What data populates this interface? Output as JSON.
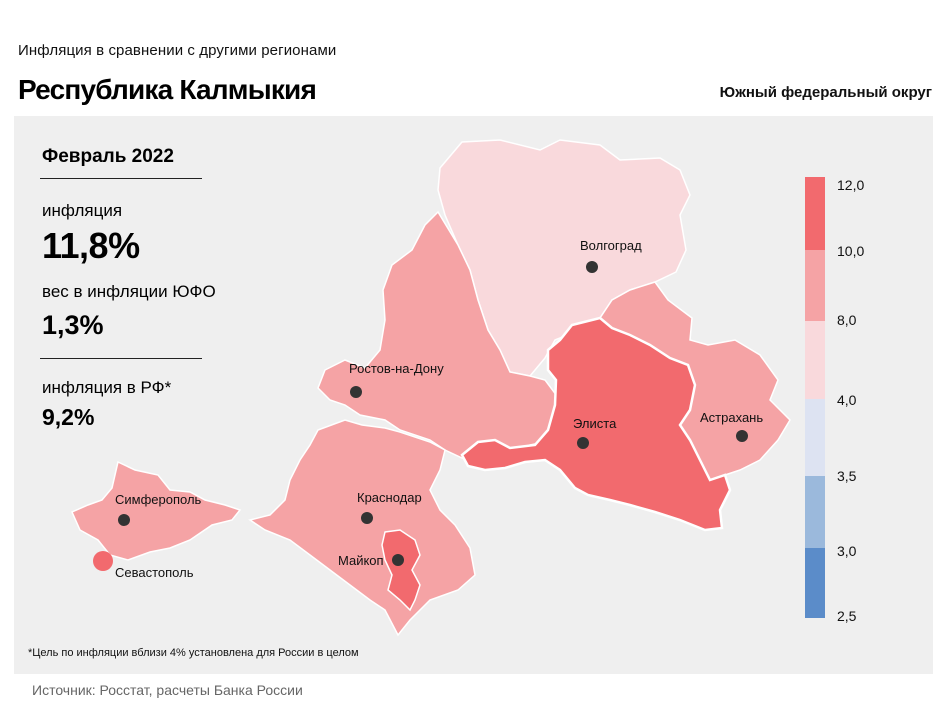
{
  "header": {
    "subtitle": "Инфляция  в сравнении  с другими  регионами",
    "title": "Республика Калмыкия",
    "district": "Южный федеральный округ"
  },
  "info": {
    "period": "Февраль 2022",
    "inflation_label": "инфляция",
    "inflation_value": "11,8%",
    "weight_label": "вес в инфляции  ЮФО",
    "weight_value": "1,3%",
    "rf_label": "инфляция  в РФ*",
    "rf_value": "9,2%"
  },
  "footnote": "*Цель по инфляции вблизи 4% установлена для России в целом",
  "source": "Источник: Росстат, расчеты Банка России",
  "cities": {
    "volgograd": "Волгоград",
    "rostov": "Ростов-на-Дону",
    "elista": "Элиста",
    "astrakhan": "Астрахань",
    "simferopol": "Симферополь",
    "krasnodar": "Краснодар",
    "maykop": "Майкоп",
    "sevastopol": "Севастополь"
  },
  "legend": {
    "ticks": [
      "12,0",
      "10,0",
      "8,0",
      "4,0",
      "3,5",
      "3,0",
      "2,5"
    ],
    "colors": [
      "#f26a6e",
      "#f5a3a5",
      "#f9d9dc",
      "#dde3f2",
      "#9bb9dc",
      "#5b8cc9"
    ]
  },
  "colors": {
    "high": "#f26a6e",
    "mid": "#f5a3a5",
    "low": "#f9d9dc",
    "panel": "#efefef"
  }
}
